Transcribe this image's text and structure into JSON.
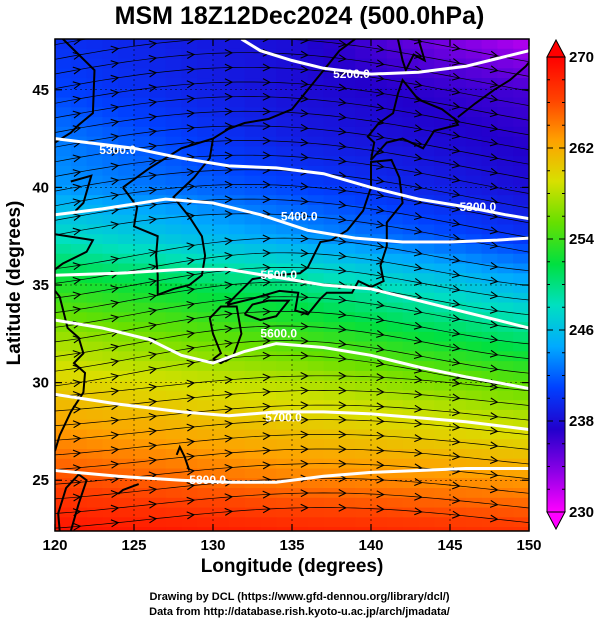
{
  "title": "MSM 18Z12Dec2024 (500.0hPa)",
  "credits": {
    "line1": "Drawing by DCL (https://www.gfd-dennou.org/library/dcl/)",
    "line2": "Data from http://database.rish.kyoto-u.ac.jp/arch/jmadata/"
  },
  "chart_data": {
    "type": "heatmap",
    "title": "MSM 18Z12Dec2024 (500.0hPa)",
    "xlabel": "Longitude (degrees)",
    "ylabel": "Latitude  (degrees)",
    "xlim": [
      120,
      150
    ],
    "ylim": [
      22.4,
      47.6
    ],
    "xticks": [
      120,
      125,
      130,
      135,
      140,
      145,
      150
    ],
    "yticks": [
      25,
      30,
      35,
      40,
      45
    ],
    "colorbar": {
      "range": [
        230,
        270
      ],
      "ticks": [
        230,
        238,
        246,
        254,
        262,
        270
      ],
      "colors": [
        "#ff00ff",
        "#8a00e6",
        "#2200cc",
        "#0040ff",
        "#00aaff",
        "#00e0c0",
        "#00e040",
        "#66e000",
        "#d8e000",
        "#ffa000",
        "#ff4000",
        "#ff0000"
      ]
    },
    "temperature_field_K": {
      "lats": [
        47.6,
        45,
        42.5,
        40,
        37.5,
        35,
        32.5,
        30,
        27.5,
        25,
        22.4
      ],
      "lons": [
        120,
        135,
        150
      ],
      "values": [
        [
          240,
          238,
          232
        ],
        [
          241,
          238,
          236
        ],
        [
          243,
          239,
          237
        ],
        [
          244,
          241,
          238
        ],
        [
          248,
          244,
          240
        ],
        [
          253,
          250,
          245
        ],
        [
          257,
          254,
          250
        ],
        [
          260,
          258,
          255
        ],
        [
          263,
          261,
          259
        ],
        [
          266,
          264,
          263
        ],
        [
          269,
          268,
          267
        ]
      ]
    },
    "contours": [
      {
        "label": "5200.0",
        "points": [
          [
            131.8,
            47.6
          ],
          [
            133,
            47
          ],
          [
            135,
            46.5
          ],
          [
            137,
            46.1
          ],
          [
            140,
            45.8
          ],
          [
            143,
            45.9
          ],
          [
            146,
            46.2
          ],
          [
            148,
            46.6
          ],
          [
            150,
            47.0
          ]
        ]
      },
      {
        "label": "5300.0",
        "points": [
          [
            120,
            42.5
          ],
          [
            122,
            42.3
          ],
          [
            125,
            42.0
          ],
          [
            128,
            41.5
          ],
          [
            131,
            41.1
          ],
          [
            134,
            41.0
          ],
          [
            137,
            40.7
          ],
          [
            140,
            40.0
          ],
          [
            143,
            39.4
          ],
          [
            146,
            39.0
          ],
          [
            148.5,
            38.6
          ],
          [
            150,
            38.4
          ]
        ]
      },
      {
        "label": "5400.0",
        "points": [
          [
            120,
            38.6
          ],
          [
            123,
            38.9
          ],
          [
            127,
            39.4
          ],
          [
            130,
            39.2
          ],
          [
            133,
            38.6
          ],
          [
            136,
            37.8
          ],
          [
            139,
            37.4
          ],
          [
            142,
            37.2
          ],
          [
            145,
            37.2
          ],
          [
            148,
            37.3
          ],
          [
            150,
            37.4
          ]
        ]
      },
      {
        "label": "5500.0",
        "points": [
          [
            120,
            35.5
          ],
          [
            124,
            35.6
          ],
          [
            128,
            35.8
          ],
          [
            131,
            35.8
          ],
          [
            134,
            35.4
          ],
          [
            137,
            35.0
          ],
          [
            140,
            34.8
          ],
          [
            143,
            34.2
          ],
          [
            146,
            33.6
          ],
          [
            148,
            33.2
          ],
          [
            150,
            32.8
          ]
        ]
      },
      {
        "label": "5600.0",
        "points": [
          [
            120,
            33.2
          ],
          [
            123,
            32.8
          ],
          [
            126,
            32.2
          ],
          [
            128,
            31.4
          ],
          [
            130,
            31.0
          ],
          [
            132,
            31.6
          ],
          [
            134,
            32.0
          ],
          [
            137,
            31.8
          ],
          [
            140,
            31.4
          ],
          [
            143,
            30.8
          ],
          [
            146,
            30.3
          ],
          [
            148,
            30.0
          ],
          [
            150,
            29.7
          ]
        ]
      },
      {
        "label": "5700.0",
        "points": [
          [
            120,
            29.4
          ],
          [
            124,
            28.9
          ],
          [
            128,
            28.5
          ],
          [
            131,
            28.3
          ],
          [
            134,
            28.5
          ],
          [
            137,
            28.5
          ],
          [
            140,
            28.4
          ],
          [
            143,
            28.2
          ],
          [
            146,
            28.0
          ],
          [
            150,
            27.6
          ]
        ]
      },
      {
        "label": "5800.0",
        "points": [
          [
            120,
            25.5
          ],
          [
            124,
            25.2
          ],
          [
            128,
            25.0
          ],
          [
            131,
            24.9
          ],
          [
            134,
            24.9
          ],
          [
            137,
            25.2
          ],
          [
            140,
            25.4
          ],
          [
            143,
            25.5
          ],
          [
            146,
            25.6
          ],
          [
            150,
            25.6
          ]
        ]
      }
    ],
    "wind_field": "streamlines with arrows, predominantly westerly (west-to-east)"
  }
}
